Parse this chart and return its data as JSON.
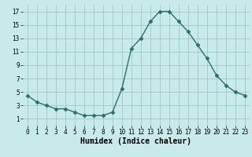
{
  "x": [
    0,
    1,
    2,
    3,
    4,
    5,
    6,
    7,
    8,
    9,
    10,
    11,
    12,
    13,
    14,
    15,
    16,
    17,
    18,
    19,
    20,
    21,
    22,
    23
  ],
  "y": [
    4.5,
    3.5,
    3.0,
    2.5,
    2.5,
    2.0,
    1.5,
    1.5,
    1.5,
    2.0,
    5.5,
    11.5,
    13.0,
    15.5,
    17.0,
    17.0,
    15.5,
    14.0,
    12.0,
    10.0,
    7.5,
    6.0,
    5.0,
    4.5
  ],
  "xlabel": "Humidex (Indice chaleur)",
  "xlim": [
    -0.5,
    23.5
  ],
  "ylim": [
    0,
    18
  ],
  "yticks": [
    1,
    3,
    5,
    7,
    9,
    11,
    13,
    15,
    17
  ],
  "xtick_labels": [
    "0",
    "1",
    "2",
    "3",
    "4",
    "5",
    "6",
    "7",
    "8",
    "9",
    "10",
    "11",
    "12",
    "13",
    "14",
    "15",
    "16",
    "17",
    "18",
    "19",
    "20",
    "21",
    "22",
    "23"
  ],
  "line_color": "#2d6e6e",
  "marker": "D",
  "marker_size": 2.5,
  "bg_color": "#c8eaea",
  "grid_color": "#a0c8c8",
  "fig_bg": "#c8eaea",
  "tick_fontsize": 5.5,
  "xlabel_fontsize": 7,
  "ylabel_fontsize": 6
}
